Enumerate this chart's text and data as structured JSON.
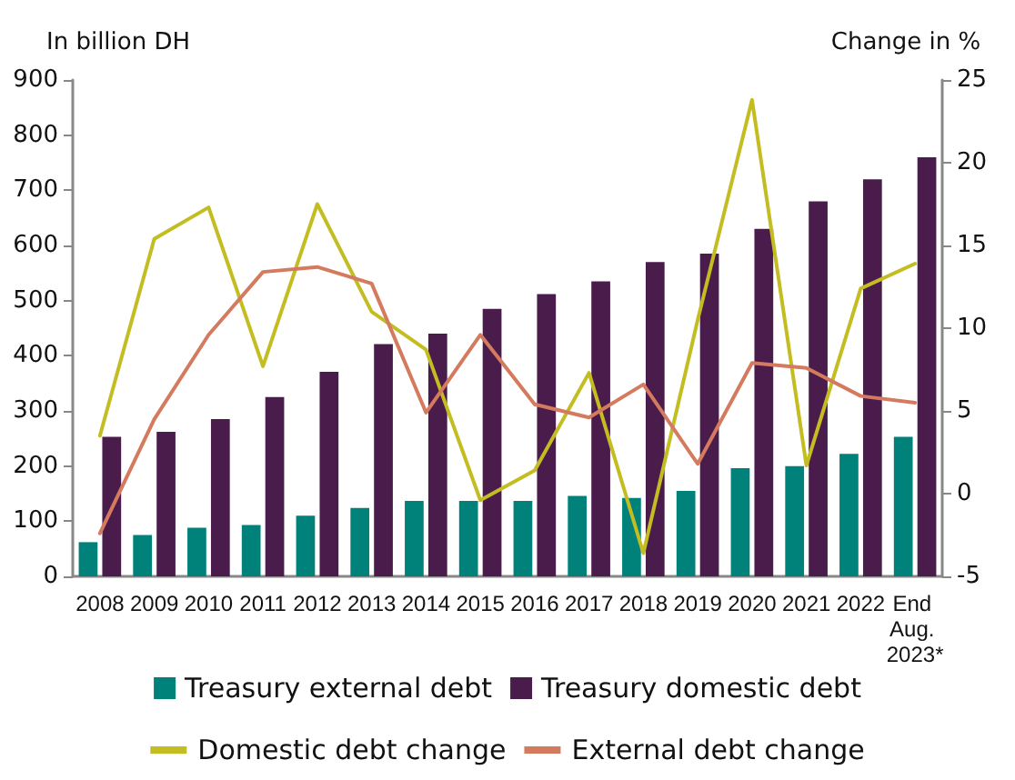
{
  "chart_data": {
    "type": "bar",
    "ylabel": "In billion DH",
    "y2label": "Change in %",
    "categories": [
      "2008",
      "2009",
      "2010",
      "2011",
      "2012",
      "2013",
      "2014",
      "2015",
      "2016",
      "2017",
      "2018",
      "2019",
      "2020",
      "2021",
      "2022",
      "End Aug. 2023*"
    ],
    "series": [
      {
        "name": "Treasury external debt",
        "color": "#00827a",
        "values": [
          62,
          75,
          88,
          93,
          110,
          124,
          137,
          137,
          137,
          146,
          142,
          155,
          196,
          200,
          222,
          253
        ]
      },
      {
        "name": "Treasury domestic debt",
        "color": "#4a1c4c",
        "values": [
          253,
          262,
          285,
          325,
          371,
          421,
          440,
          485,
          512,
          535,
          570,
          585,
          630,
          680,
          720,
          760
        ]
      },
      {
        "name": "Domestic debt change",
        "type": "line",
        "axis": "y2",
        "color": "#c3bd22",
        "values": [
          3.5,
          15.4,
          17.3,
          7.7,
          17.5,
          11.0,
          8.7,
          -0.4,
          1.4,
          7.3,
          -3.6,
          10.5,
          23.8,
          1.7,
          12.4,
          13.9
        ]
      },
      {
        "name": "External debt change",
        "type": "line",
        "axis": "y2",
        "color": "#d47a5e",
        "values": [
          -2.4,
          4.5,
          9.6,
          13.4,
          13.7,
          12.7,
          4.9,
          9.6,
          5.4,
          4.6,
          6.6,
          1.8,
          7.9,
          7.6,
          5.9,
          5.5
        ]
      }
    ],
    "ylim": [
      0,
      900
    ],
    "yticks": [
      0,
      100,
      200,
      300,
      400,
      500,
      600,
      700,
      800,
      900
    ],
    "y2lim": [
      -5,
      25
    ],
    "y2ticks": [
      -5,
      0,
      5,
      10,
      15,
      20,
      25
    ],
    "grid": false,
    "legend": "bottom",
    "marker": "none",
    "line_style": "solid"
  }
}
